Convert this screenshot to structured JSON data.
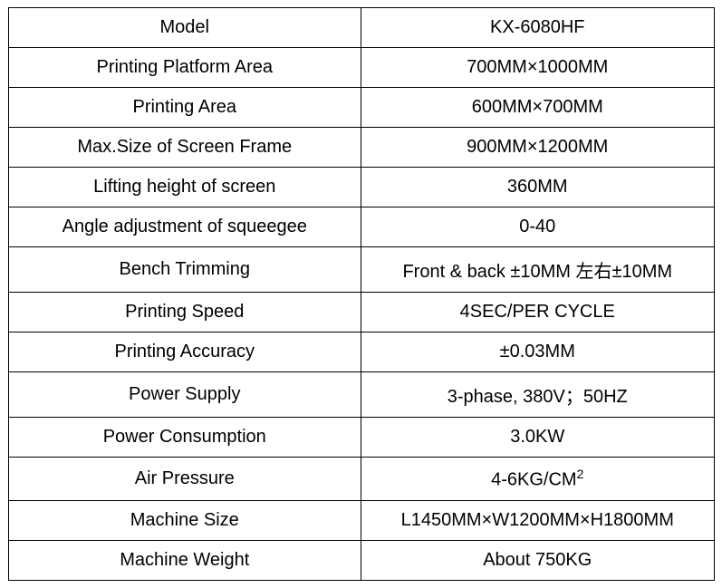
{
  "table": {
    "border_color": "#000000",
    "background_color": "#ffffff",
    "text_color": "#000000",
    "font_size": 20,
    "column_widths": [
      "50%",
      "50%"
    ],
    "rows": [
      {
        "label": "Model",
        "value": "KX-6080HF"
      },
      {
        "label": "Printing Platform Area",
        "value": "700MM×1000MM"
      },
      {
        "label": "Printing Area",
        "value": "600MM×700MM"
      },
      {
        "label": "Max.Size of Screen Frame",
        "value": "900MM×1200MM"
      },
      {
        "label": "Lifting height of screen",
        "value": "360MM"
      },
      {
        "label": "Angle adjustment of squeegee",
        "value": "0-40"
      },
      {
        "label": "Bench Trimming",
        "value": "Front & back ±10MM 左右±10MM"
      },
      {
        "label": "Printing Speed",
        "value": "4SEC/PER CYCLE"
      },
      {
        "label": "Printing Accuracy",
        "value": "±0.03MM"
      },
      {
        "label": "Power Supply",
        "value": "3-phase, 380V；50HZ"
      },
      {
        "label": "Power Consumption",
        "value": "3.0KW"
      },
      {
        "label": "Air Pressure",
        "value": "4-6KG/CM²",
        "has_superscript": true,
        "value_base": "4-6KG/CM",
        "value_sup": "2"
      },
      {
        "label": "Machine Size",
        "value": "L1450MM×W1200MM×H1800MM"
      },
      {
        "label": "Machine Weight",
        "value": "About 750KG"
      }
    ]
  }
}
